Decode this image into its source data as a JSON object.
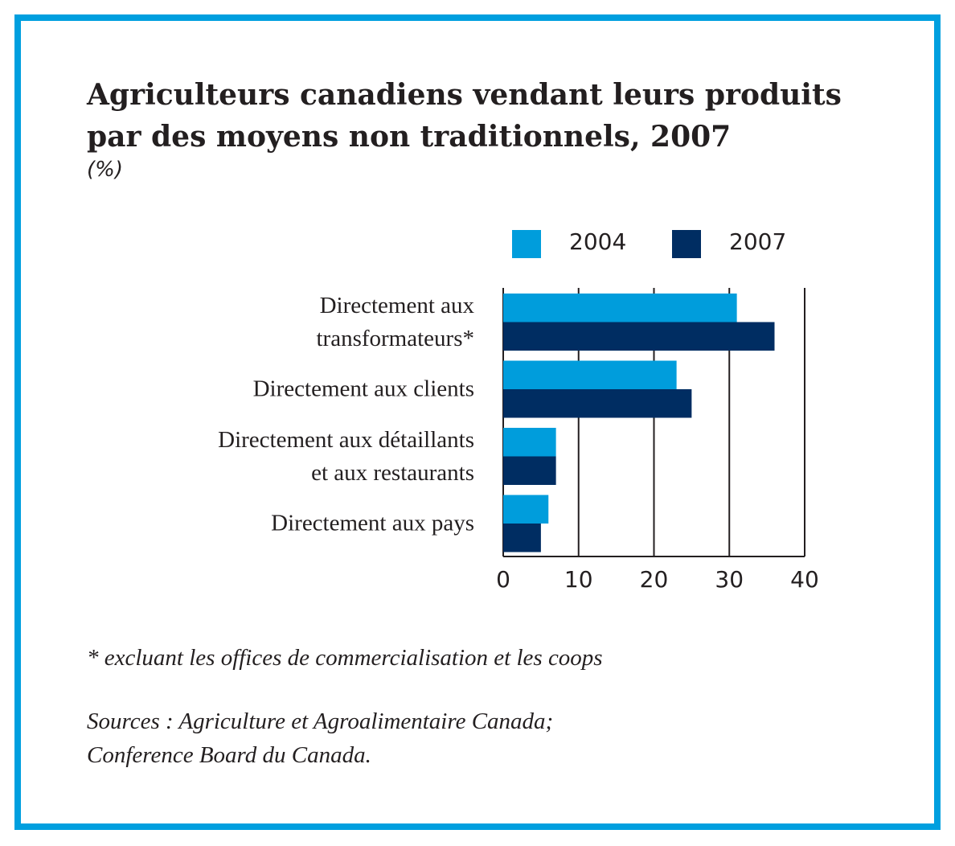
{
  "chart_data": {
    "type": "hbar",
    "title": "Agriculteurs canadiens vendant leurs produits\npar des moyens non traditionnels, 2007",
    "subtitle": "(%)",
    "categories": [
      "Directement aux\ntransformateurs*",
      "Directement aux clients",
      "Directement aux détaillants\net aux restaurants",
      "Directement aux pays"
    ],
    "series": [
      {
        "name": "2004",
        "color": "#009ddc",
        "values": [
          31,
          23,
          7,
          6
        ]
      },
      {
        "name": "2007",
        "color": "#002d62",
        "values": [
          36,
          25,
          7,
          5
        ]
      }
    ],
    "xlim": [
      0,
      40
    ],
    "xticks": [
      0,
      10,
      20,
      30,
      40
    ],
    "grid": true,
    "note": "* excluant les offices de commercialisation et les coops",
    "source": "Sources : Agriculture et Agroalimentaire Canada;\nConference Board du Canada."
  }
}
